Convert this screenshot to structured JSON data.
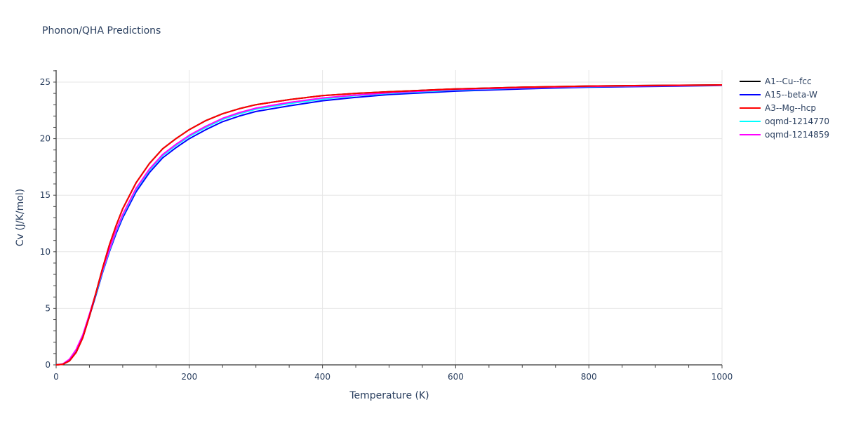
{
  "title": "Phonon/QHA Predictions",
  "chart_data": {
    "type": "line",
    "title": "Phonon/QHA Predictions",
    "xlabel": "Temperature (K)",
    "ylabel": "Cv (J/K/mol)",
    "xlim": [
      0,
      1000
    ],
    "ylim": [
      0,
      26
    ],
    "xticks": [
      0,
      200,
      400,
      600,
      800,
      1000
    ],
    "yticks": [
      0,
      5,
      10,
      15,
      20,
      25
    ],
    "grid": true,
    "legend_position": "right",
    "x": [
      0,
      10,
      20,
      30,
      40,
      50,
      60,
      70,
      80,
      90,
      100,
      120,
      140,
      160,
      180,
      200,
      225,
      250,
      275,
      300,
      350,
      400,
      450,
      500,
      600,
      700,
      800,
      900,
      1000
    ],
    "series": [
      {
        "name": "A1--Cu--fcc",
        "color": "#000000",
        "values": [
          0,
          0.05,
          0.35,
          1.1,
          2.4,
          4.3,
          6.4,
          8.6,
          10.6,
          12.3,
          13.8,
          16.1,
          17.8,
          19.1,
          20.0,
          20.8,
          21.6,
          22.2,
          22.65,
          23.0,
          23.45,
          23.8,
          24.0,
          24.15,
          24.4,
          24.55,
          24.65,
          24.7,
          24.75
        ]
      },
      {
        "name": "A15--beta-W",
        "color": "#0000ff",
        "values": [
          0,
          0.06,
          0.4,
          1.2,
          2.5,
          4.3,
          6.2,
          8.2,
          10.0,
          11.6,
          13.0,
          15.3,
          17.0,
          18.3,
          19.2,
          20.0,
          20.8,
          21.5,
          22.0,
          22.4,
          22.9,
          23.35,
          23.65,
          23.9,
          24.2,
          24.4,
          24.55,
          24.62,
          24.7
        ]
      },
      {
        "name": "A3--Mg--hcp",
        "color": "#ff0000",
        "values": [
          0,
          0.05,
          0.35,
          1.1,
          2.4,
          4.3,
          6.4,
          8.6,
          10.6,
          12.3,
          13.8,
          16.1,
          17.8,
          19.1,
          20.0,
          20.8,
          21.6,
          22.2,
          22.65,
          23.0,
          23.45,
          23.8,
          24.0,
          24.15,
          24.4,
          24.55,
          24.65,
          24.7,
          24.75
        ]
      },
      {
        "name": "oqmd-1214770",
        "color": "#00ffff",
        "values": [
          0,
          0.07,
          0.45,
          1.3,
          2.6,
          4.4,
          6.3,
          8.3,
          10.1,
          11.8,
          13.2,
          15.5,
          17.2,
          18.5,
          19.4,
          20.2,
          21.0,
          21.7,
          22.2,
          22.6,
          23.1,
          23.5,
          23.8,
          24.0,
          24.3,
          24.48,
          24.6,
          24.67,
          24.72
        ]
      },
      {
        "name": "oqmd-1214859",
        "color": "#ff00ff",
        "values": [
          0,
          0.08,
          0.5,
          1.35,
          2.65,
          4.5,
          6.4,
          8.4,
          10.2,
          11.9,
          13.3,
          15.6,
          17.3,
          18.6,
          19.5,
          20.3,
          21.1,
          21.8,
          22.3,
          22.7,
          23.2,
          23.6,
          23.85,
          24.05,
          24.35,
          24.5,
          24.62,
          24.68,
          24.73
        ]
      }
    ]
  }
}
